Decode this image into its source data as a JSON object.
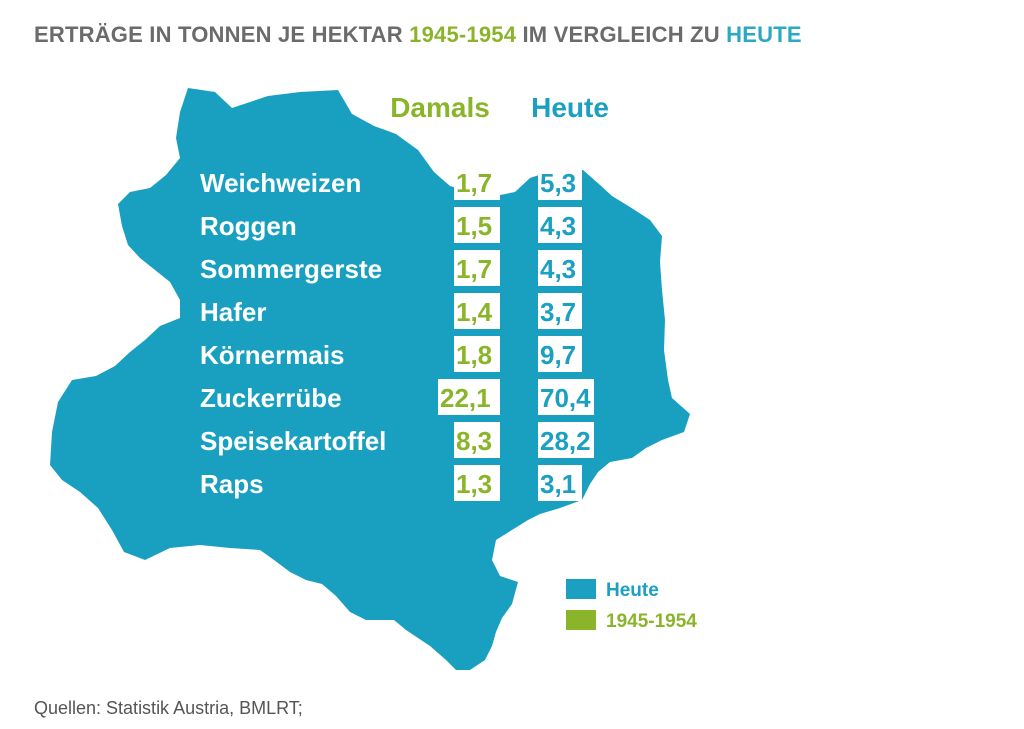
{
  "title": {
    "part1": "ERTRÄGE IN TONNEN JE HEKTAR ",
    "part2": "1945-1954",
    "part3": " IM VERGLEICH ZU ",
    "part4": "HEUTE"
  },
  "colors": {
    "map": "#19a0c1",
    "damals": "#8ab52a",
    "heute": "#1ba0c1",
    "title_gray": "#6b6b6b",
    "title_teal": "#2aa9c2"
  },
  "chart_data": {
    "type": "table",
    "columns": [
      "Damals",
      "Heute"
    ],
    "rows": [
      {
        "label": "Weichweizen",
        "damals": "1,7",
        "heute": "5,3"
      },
      {
        "label": "Roggen",
        "damals": "1,5",
        "heute": "4,3"
      },
      {
        "label": "Sommergerste",
        "damals": "1,7",
        "heute": "4,3"
      },
      {
        "label": "Hafer",
        "damals": "1,4",
        "heute": "3,7"
      },
      {
        "label": "Körnermais",
        "damals": "1,8",
        "heute": "9,7"
      },
      {
        "label": "Zuckerrübe",
        "damals": "22,1",
        "heute": "70,4"
      },
      {
        "label": "Speisekartoffel",
        "damals": "8,3",
        "heute": "28,2"
      },
      {
        "label": "Raps",
        "damals": "1,3",
        "heute": "3,1"
      }
    ],
    "legend": [
      {
        "label": "Heute",
        "color": "#1ba0c1"
      },
      {
        "label": "1945-1954",
        "color": "#8ab52a"
      }
    ]
  },
  "source": "Quellen: Statistik Austria, BMLRT;"
}
